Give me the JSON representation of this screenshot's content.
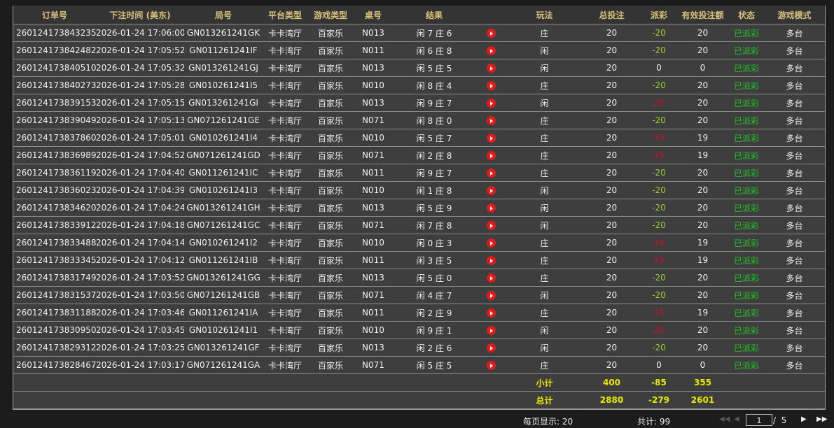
{
  "headers": [
    "订单号",
    "下注时间 (美东)",
    "局号",
    "平台类型",
    "游戏类型",
    "桌号",
    "结果",
    "",
    "玩法",
    "总投注",
    "派彩",
    "有效投注额",
    "状态",
    "游戏模式"
  ],
  "rows": [
    [
      "260124173843235",
      "2026-01-24 17:06:00",
      "GN013261241GK",
      "卡卡湾厅",
      "百家乐",
      "N013",
      "闲 7 庄 6",
      "庄",
      "20",
      "-20",
      "20",
      "已派彩",
      "多台"
    ],
    [
      "260124173842482",
      "2026-01-24 17:05:52",
      "GN011261241IF",
      "卡卡湾厅",
      "百家乐",
      "N011",
      "闲 6 庄 8",
      "闲",
      "20",
      "-20",
      "20",
      "已派彩",
      "多台"
    ],
    [
      "260124173840510",
      "2026-01-24 17:05:32",
      "GN013261241GJ",
      "卡卡湾厅",
      "百家乐",
      "N013",
      "闲 5 庄 5",
      "闲",
      "20",
      "0",
      "0",
      "已派彩",
      "多台"
    ],
    [
      "260124173840273",
      "2026-01-24 17:05:28",
      "GN010261241I5",
      "卡卡湾厅",
      "百家乐",
      "N010",
      "闲 8 庄 4",
      "庄",
      "20",
      "-20",
      "20",
      "已派彩",
      "多台"
    ],
    [
      "260124173839153",
      "2026-01-24 17:05:15",
      "GN013261241GI",
      "卡卡湾厅",
      "百家乐",
      "N013",
      "闲 9 庄 7",
      "闲",
      "20",
      "20",
      "20",
      "已派彩",
      "多台"
    ],
    [
      "260124173839049",
      "2026-01-24 17:05:13",
      "GN071261241GE",
      "卡卡湾厅",
      "百家乐",
      "N071",
      "闲 8 庄 0",
      "庄",
      "20",
      "-20",
      "20",
      "已派彩",
      "多台"
    ],
    [
      "260124173837860",
      "2026-01-24 17:05:01",
      "GN010261241I4",
      "卡卡湾厅",
      "百家乐",
      "N010",
      "闲 5 庄 7",
      "庄",
      "20",
      "19",
      "19",
      "已派彩",
      "多台"
    ],
    [
      "260124173836989",
      "2026-01-24 17:04:52",
      "GN071261241GD",
      "卡卡湾厅",
      "百家乐",
      "N071",
      "闲 2 庄 8",
      "庄",
      "20",
      "19",
      "19",
      "已派彩",
      "多台"
    ],
    [
      "260124173836119",
      "2026-01-24 17:04:40",
      "GN011261241IC",
      "卡卡湾厅",
      "百家乐",
      "N011",
      "闲 9 庄 7",
      "庄",
      "20",
      "-20",
      "20",
      "已派彩",
      "多台"
    ],
    [
      "260124173836023",
      "2026-01-24 17:04:39",
      "GN010261241I3",
      "卡卡湾厅",
      "百家乐",
      "N010",
      "闲 1 庄 8",
      "闲",
      "20",
      "-20",
      "20",
      "已派彩",
      "多台"
    ],
    [
      "260124173834620",
      "2026-01-24 17:04:24",
      "GN013261241GH",
      "卡卡湾厅",
      "百家乐",
      "N013",
      "闲 5 庄 9",
      "闲",
      "20",
      "-20",
      "20",
      "已派彩",
      "多台"
    ],
    [
      "260124173833912",
      "2026-01-24 17:04:18",
      "GN071261241GC",
      "卡卡湾厅",
      "百家乐",
      "N071",
      "闲 7 庄 8",
      "闲",
      "20",
      "-20",
      "20",
      "已派彩",
      "多台"
    ],
    [
      "260124173833488",
      "2026-01-24 17:04:14",
      "GN010261241I2",
      "卡卡湾厅",
      "百家乐",
      "N010",
      "闲 0 庄 3",
      "庄",
      "20",
      "19",
      "19",
      "已派彩",
      "多台"
    ],
    [
      "260124173833345",
      "2026-01-24 17:04:12",
      "GN011261241IB",
      "卡卡湾厅",
      "百家乐",
      "N011",
      "闲 3 庄 5",
      "庄",
      "20",
      "19",
      "19",
      "已派彩",
      "多台"
    ],
    [
      "260124173831749",
      "2026-01-24 17:03:52",
      "GN013261241GG",
      "卡卡湾厅",
      "百家乐",
      "N013",
      "闲 5 庄 0",
      "庄",
      "20",
      "-20",
      "20",
      "已派彩",
      "多台"
    ],
    [
      "260124173831537",
      "2026-01-24 17:03:50",
      "GN071261241GB",
      "卡卡湾厅",
      "百家乐",
      "N071",
      "闲 4 庄 7",
      "闲",
      "20",
      "-20",
      "20",
      "已派彩",
      "多台"
    ],
    [
      "260124173831188",
      "2026-01-24 17:03:46",
      "GN011261241IA",
      "卡卡湾厅",
      "百家乐",
      "N011",
      "闲 2 庄 9",
      "庄",
      "20",
      "19",
      "19",
      "已派彩",
      "多台"
    ],
    [
      "260124173830950",
      "2026-01-24 17:03:45",
      "GN010261241I1",
      "卡卡湾厅",
      "百家乐",
      "N010",
      "闲 9 庄 1",
      "闲",
      "20",
      "20",
      "20",
      "已派彩",
      "多台"
    ],
    [
      "260124173829312",
      "2026-01-24 17:03:25",
      "GN013261241GF",
      "卡卡湾厅",
      "百家乐",
      "N013",
      "闲 2 庄 6",
      "闲",
      "20",
      "-20",
      "20",
      "已派彩",
      "多台"
    ],
    [
      "260124173828467",
      "2026-01-24 17:03:17",
      "GN071261241GA",
      "卡卡湾厅",
      "百家乐",
      "N071",
      "闲 5 庄 5",
      "庄",
      "20",
      "0",
      "0",
      "已派彩",
      "多台"
    ]
  ],
  "subtotal": {
    "label": "小计",
    "bet": "400",
    "payout": "-85",
    "valid": "355"
  },
  "total": {
    "label": "总计",
    "bet": "2880",
    "payout": "-279",
    "valid": "2601"
  },
  "footer": {
    "per_page": "每页显示: 20",
    "count": "共计: 99",
    "page": "1",
    "pages": "/  5"
  },
  "colors": {
    "header_text": "#d8c07a",
    "status": "#22c322",
    "payout_loss": "#9acd32",
    "payout_win": "#c8102e",
    "summary": "#e8e800"
  },
  "icons": {
    "replay": "play-circle-icon"
  }
}
